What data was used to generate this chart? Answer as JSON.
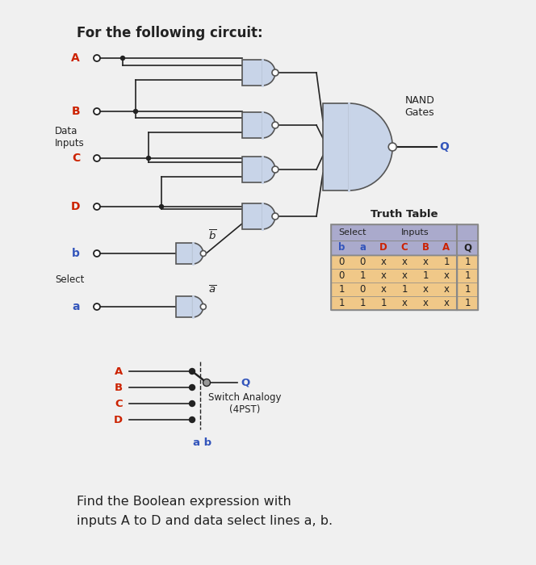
{
  "title": "For the following circuit:",
  "bg_color": "#f0f0f0",
  "white": "#ffffff",
  "gate_fill": "#c8d4e8",
  "gate_edge": "#555555",
  "red_color": "#cc2200",
  "blue_color": "#3355bb",
  "black": "#222222",
  "table_header_bg": "#aaaacc",
  "table_data_bg": "#f0c888",
  "table_border": "#888888",
  "truth_table_title": "Truth Table",
  "col_headers": [
    "b",
    "a",
    "D",
    "C",
    "B",
    "A",
    "Q"
  ],
  "table_rows": [
    [
      "0",
      "0",
      "x",
      "x",
      "x",
      "1",
      "1"
    ],
    [
      "0",
      "1",
      "x",
      "x",
      "1",
      "x",
      "1"
    ],
    [
      "1",
      "0",
      "x",
      "1",
      "x",
      "x",
      "1"
    ],
    [
      "1",
      "1",
      "1",
      "x",
      "x",
      "x",
      "1"
    ]
  ],
  "bottom_text1": "Find the Boolean expression with",
  "bottom_text2": "inputs A to D and data select lines a, b.",
  "nand_label": "NAND\nGates",
  "data_inputs_label": "Data\nInputs",
  "select_label": "Select",
  "switch_label": "Switch Analogy\n(4PST)",
  "ab_label": "a b",
  "Q_label": "Q"
}
